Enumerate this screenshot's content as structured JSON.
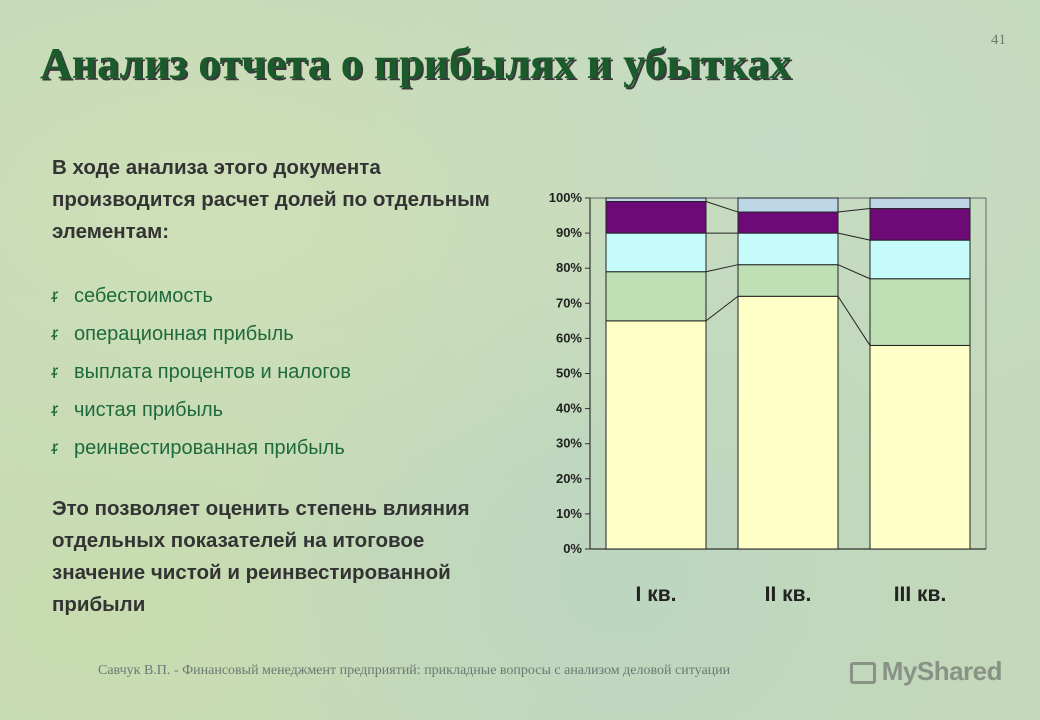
{
  "page_number": "41",
  "title": "Анализ отчета о прибылях и убытках",
  "intro": "В ходе анализа этого документа производится расчет долей по отдельным элементам:",
  "bullets": [
    "себестоимость",
    "операционная прибыль",
    "выплата процентов и налогов",
    "чистая прибыль",
    "реинвестированная прибыль"
  ],
  "bullet_icon": "book-icon",
  "conclusion": "Это позволяет оценить степень влияния отдельных показателей на итоговое значение чистой и реинвестированной прибыли",
  "footer": "Савчук В.П. - Финансовый менеджмент предприятий: прикладные вопросы с анализом деловой ситуации",
  "watermark": "MyShared",
  "chart_data": {
    "type": "bar",
    "stacked": true,
    "percent": true,
    "categories": [
      "I кв.",
      "II кв.",
      "III кв."
    ],
    "series": [
      {
        "values": [
          65,
          72,
          58
        ],
        "color": "#ffffc8"
      },
      {
        "values": [
          14,
          9,
          19
        ],
        "color": "#bfe0b4"
      },
      {
        "values": [
          11,
          9,
          11
        ],
        "color": "#c6fbfb"
      },
      {
        "values": [
          9,
          6,
          9
        ],
        "color": "#6e0a78"
      },
      {
        "values": [
          1,
          4,
          3
        ],
        "color": "#bcd6e6"
      }
    ],
    "yticks": [
      "0%",
      "10%",
      "20%",
      "30%",
      "40%",
      "50%",
      "60%",
      "70%",
      "80%",
      "90%",
      "100%"
    ],
    "ylim": [
      0,
      100
    ],
    "grid": false,
    "series_lines": true,
    "title": "",
    "xlabel": "",
    "ylabel": ""
  }
}
